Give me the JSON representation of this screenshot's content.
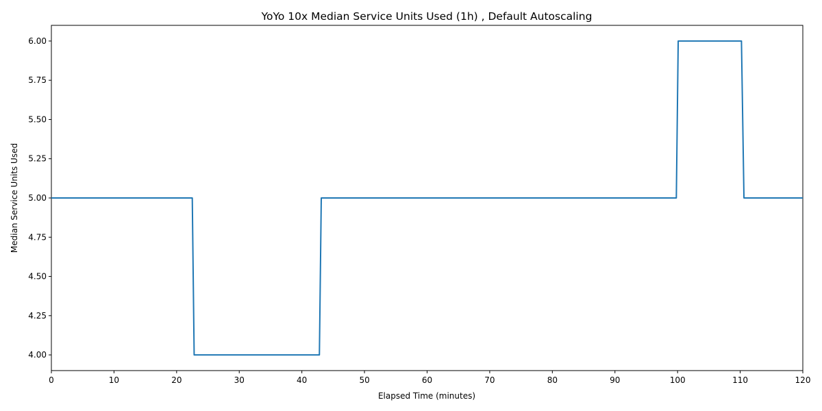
{
  "chart_data": {
    "type": "line",
    "title": "YoYo 10x Median Service Units Used (1h) , Default Autoscaling",
    "xlabel": "Elapsed Time (minutes)",
    "ylabel": "Median Service Units Used",
    "xlim": [
      0,
      120
    ],
    "ylim": [
      3.9,
      6.1
    ],
    "x_ticks": [
      0,
      10,
      20,
      30,
      40,
      50,
      60,
      70,
      80,
      90,
      100,
      110,
      120
    ],
    "x_tick_labels": [
      "0",
      "10",
      "20",
      "30",
      "40",
      "50",
      "60",
      "70",
      "80",
      "90",
      "100",
      "110",
      "120"
    ],
    "y_ticks": [
      4.0,
      4.25,
      4.5,
      4.75,
      5.0,
      5.25,
      5.5,
      5.75,
      6.0
    ],
    "y_tick_labels": [
      "4.00",
      "4.25",
      "4.50",
      "4.75",
      "5.00",
      "5.25",
      "5.50",
      "5.75",
      "6.00"
    ],
    "grid": false,
    "legend": "none",
    "series": [
      {
        "color": "#1f77b4",
        "x": [
          0,
          22.5,
          22.8,
          42.8,
          43.1,
          99.8,
          100.1,
          110.2,
          110.6,
          120
        ],
        "y": [
          5.0,
          5.0,
          4.0,
          4.0,
          5.0,
          5.0,
          6.0,
          6.0,
          5.0,
          5.0
        ]
      }
    ]
  }
}
